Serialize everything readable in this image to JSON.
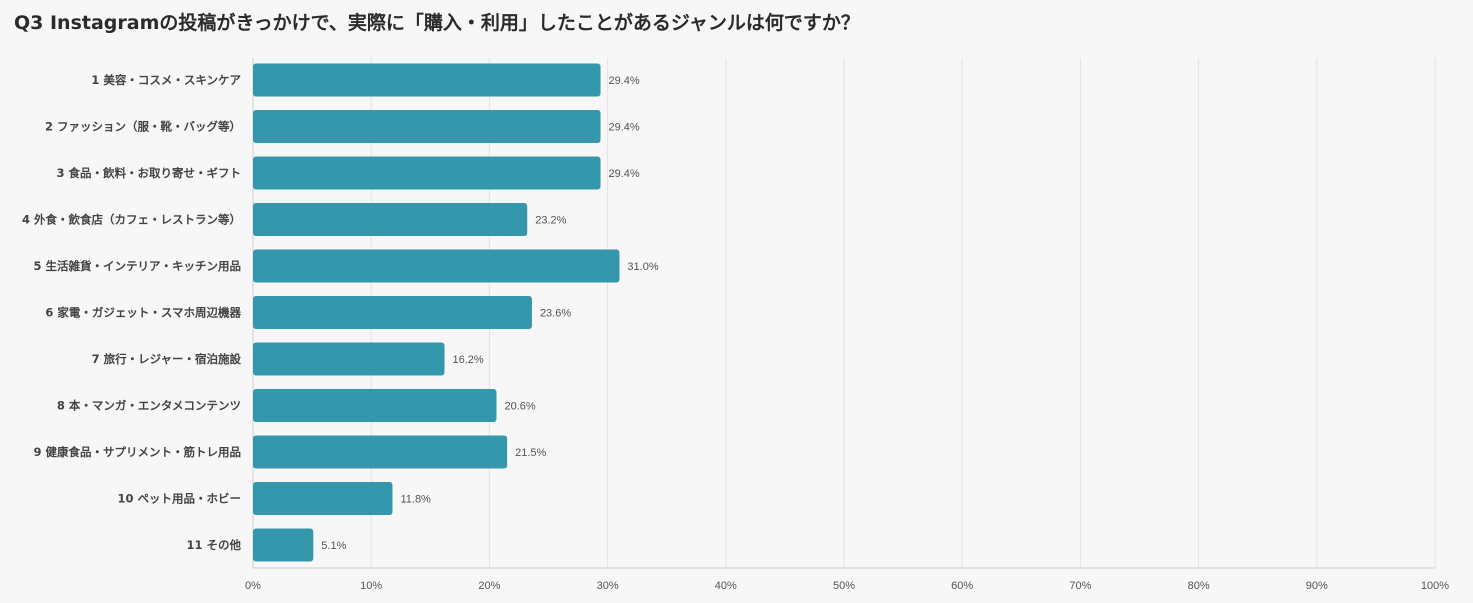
{
  "title": "Q3 Instagramの投稿がきっかけで、実際に「購入・利用」したことがあるジャンルは何ですか？",
  "colors": {
    "bar": "#3597ab",
    "grid": "#e3e3e3",
    "axis": "#cccccc",
    "background": "#f7f7f7"
  },
  "chart_data": {
    "type": "bar",
    "orientation": "horizontal",
    "categories": [
      "1 美容・コスメ・スキンケア",
      "2 ファッション（服・靴・バッグ等）",
      "3 食品・飲料・お取り寄せ・ギフト",
      "4 外食・飲食店（カフェ・レストラン等）",
      "5 生活雑貨・インテリア・キッチン用品",
      "6 家電・ガジェット・スマホ周辺機器",
      "7 旅行・レジャー・宿泊施設",
      "8 本・マンガ・エンタメコンテンツ",
      "9 健康食品・サプリメント・筋トレ用品",
      "10 ペット用品・ホビー",
      "11 その他"
    ],
    "values": [
      29.4,
      29.4,
      29.4,
      23.2,
      31.0,
      23.6,
      16.2,
      20.6,
      21.5,
      11.8,
      5.1
    ],
    "value_labels": [
      "29.4%",
      "29.4%",
      "29.4%",
      "23.2%",
      "31.0%",
      "23.6%",
      "16.2%",
      "20.6%",
      "21.5%",
      "11.8%",
      "5.1%"
    ],
    "xlim": [
      0,
      100
    ],
    "x_ticks": [
      "0%",
      "10%",
      "20%",
      "30%",
      "40%",
      "50%",
      "60%",
      "70%",
      "80%",
      "90%",
      "100%"
    ],
    "grid": true,
    "legend": "none"
  }
}
